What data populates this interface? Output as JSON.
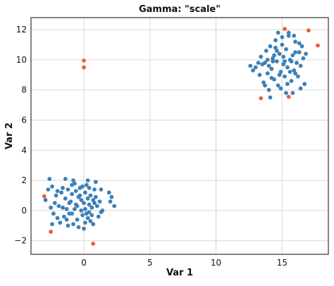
{
  "chart_data": {
    "type": "scatter",
    "title": "Gamma: \"scale\"",
    "xlabel": "Var 1",
    "ylabel": "Var 2",
    "xlim": [
      -4,
      18.5
    ],
    "ylim": [
      -2.9,
      12.8
    ],
    "x_ticks": [
      {
        "value": 0,
        "label": "0"
      },
      {
        "value": 5,
        "label": "5"
      },
      {
        "value": 10,
        "label": "10"
      },
      {
        "value": 15,
        "label": "15"
      }
    ],
    "y_ticks": [
      {
        "value": -2,
        "label": "−2"
      },
      {
        "value": 0,
        "label": "0"
      },
      {
        "value": 2,
        "label": "2"
      },
      {
        "value": 4,
        "label": "4"
      },
      {
        "value": 6,
        "label": "6"
      },
      {
        "value": 8,
        "label": "8"
      },
      {
        "value": 10,
        "label": "10"
      },
      {
        "value": 12,
        "label": "12"
      }
    ],
    "grid": true,
    "series": [
      {
        "color": "#3d80b8",
        "points": [
          [
            -2.6,
            2.1
          ],
          [
            -2.7,
            1.4
          ],
          [
            -2.4,
            1.6
          ],
          [
            -2.9,
            0.7
          ],
          [
            -2.2,
            0.5
          ],
          [
            -2.5,
            0.2
          ],
          [
            -2.1,
            1.0
          ],
          [
            -2.3,
            -0.2
          ],
          [
            -2.0,
            -0.5
          ],
          [
            -1.8,
            -0.8
          ],
          [
            -1.9,
            0.3
          ],
          [
            -1.7,
            1.2
          ],
          [
            -1.6,
            1.5
          ],
          [
            -1.4,
            0.8
          ],
          [
            -1.3,
            0.1
          ],
          [
            -1.5,
            -0.4
          ],
          [
            -1.2,
            -1.0
          ],
          [
            -1.1,
            -0.2
          ],
          [
            -1.0,
            0.6
          ],
          [
            -0.9,
            1.1
          ],
          [
            -0.8,
            2.0
          ],
          [
            -0.7,
            1.8
          ],
          [
            -0.6,
            0.4
          ],
          [
            -0.5,
            -0.6
          ],
          [
            -0.4,
            0.9
          ],
          [
            -0.3,
            1.5
          ],
          [
            -0.2,
            0.0
          ],
          [
            -0.1,
            -0.3
          ],
          [
            0.0,
            0.5
          ],
          [
            0.1,
            1.2
          ],
          [
            0.2,
            1.7
          ],
          [
            0.3,
            0.8
          ],
          [
            0.4,
            -0.1
          ],
          [
            0.5,
            -0.7
          ],
          [
            0.6,
            0.2
          ],
          [
            0.7,
            0.7
          ],
          [
            0.8,
            1.4
          ],
          [
            0.9,
            1.9
          ],
          [
            1.0,
            0.3
          ],
          [
            1.1,
            -0.4
          ],
          [
            1.2,
            0.6
          ],
          [
            1.4,
            0.0
          ],
          [
            -1.2,
            1.4
          ],
          [
            -0.9,
            -0.2
          ],
          [
            -0.5,
            0.3
          ],
          [
            -0.2,
            0.7
          ],
          [
            0.2,
            -0.2
          ],
          [
            0.4,
            0.4
          ],
          [
            0.7,
            -0.9
          ],
          [
            -0.8,
            -0.9
          ],
          [
            -1.6,
            0.2
          ],
          [
            -0.3,
            1.0
          ],
          [
            0.5,
            1.0
          ],
          [
            0.0,
            -1.2
          ],
          [
            -1.3,
            -0.6
          ],
          [
            -0.6,
            1.3
          ],
          [
            0.3,
            -0.5
          ],
          [
            0.6,
            -0.3
          ],
          [
            0.9,
            0.9
          ],
          [
            -0.4,
            -1.1
          ],
          [
            -2.0,
            1.3
          ],
          [
            -1.1,
            0.5
          ],
          [
            -0.7,
            0.1
          ],
          [
            0.1,
            0.1
          ],
          [
            0.8,
            0.5
          ],
          [
            1.3,
            -0.1
          ],
          [
            1.9,
            1.2
          ],
          [
            2.1,
            0.9
          ],
          [
            2.3,
            0.3
          ],
          [
            2.0,
            0.6
          ],
          [
            0.3,
            2.0
          ],
          [
            -0.1,
            1.6
          ],
          [
            -1.4,
            2.1
          ],
          [
            -0.9,
            1.7
          ],
          [
            0.4,
            1.5
          ],
          [
            -2.4,
            -0.9
          ],
          [
            1.3,
            1.4
          ],
          [
            0.1,
            -0.8
          ],
          [
            12.6,
            9.6
          ],
          [
            12.8,
            9.3
          ],
          [
            13.0,
            9.5
          ],
          [
            13.3,
            9.0
          ],
          [
            13.4,
            10.2
          ],
          [
            13.6,
            8.5
          ],
          [
            13.7,
            9.8
          ],
          [
            13.8,
            10.6
          ],
          [
            13.9,
            9.1
          ],
          [
            14.0,
            8.0
          ],
          [
            14.1,
            10.9
          ],
          [
            14.2,
            9.4
          ],
          [
            14.3,
            10.1
          ],
          [
            14.4,
            8.7
          ],
          [
            14.5,
            11.3
          ],
          [
            14.6,
            9.9
          ],
          [
            14.7,
            8.3
          ],
          [
            14.8,
            10.4
          ],
          [
            14.9,
            9.2
          ],
          [
            15.0,
            11.0
          ],
          [
            15.1,
            9.7
          ],
          [
            15.2,
            8.9
          ],
          [
            15.3,
            10.7
          ],
          [
            15.4,
            9.5
          ],
          [
            15.5,
            11.6
          ],
          [
            15.6,
            10.0
          ],
          [
            15.7,
            8.6
          ],
          [
            15.8,
            10.3
          ],
          [
            15.9,
            9.3
          ],
          [
            16.0,
            11.2
          ],
          [
            16.1,
            9.8
          ],
          [
            16.2,
            8.9
          ],
          [
            16.3,
            10.5
          ],
          [
            16.4,
            9.6
          ],
          [
            16.5,
            10.9
          ],
          [
            16.6,
            10.1
          ],
          [
            16.7,
            8.4
          ],
          [
            16.8,
            10.4
          ],
          [
            13.5,
            9.7
          ],
          [
            13.9,
            10.0
          ],
          [
            14.2,
            8.8
          ],
          [
            14.6,
            10.6
          ],
          [
            14.9,
            8.1
          ],
          [
            15.1,
            10.2
          ],
          [
            15.4,
            8.4
          ],
          [
            15.7,
            9.9
          ],
          [
            16.0,
            9.1
          ],
          [
            16.3,
            11.1
          ],
          [
            14.0,
            9.6
          ],
          [
            14.4,
            10.3
          ],
          [
            14.8,
            9.0
          ],
          [
            15.2,
            9.9
          ],
          [
            15.6,
            9.2
          ],
          [
            16.0,
            10.5
          ],
          [
            14.7,
            11.8
          ],
          [
            15.0,
            11.5
          ],
          [
            15.5,
            11.8
          ],
          [
            14.1,
            7.5
          ],
          [
            15.8,
            7.8
          ],
          [
            13.7,
            8.3
          ],
          [
            16.4,
            8.1
          ],
          [
            15.3,
            7.8
          ],
          [
            14.5,
            10.8
          ],
          [
            13.2,
            9.8
          ],
          [
            14.3,
            9.9
          ],
          [
            15.9,
            11.6
          ]
        ]
      },
      {
        "color": "#f05c3b",
        "points": [
          [
            0.0,
            9.95
          ],
          [
            0.0,
            9.5
          ],
          [
            -3.0,
            0.95
          ],
          [
            -2.5,
            -1.4
          ],
          [
            0.7,
            -2.2
          ],
          [
            15.2,
            12.05
          ],
          [
            17.0,
            11.95
          ],
          [
            17.7,
            10.95
          ],
          [
            13.4,
            7.45
          ],
          [
            15.5,
            7.55
          ]
        ]
      }
    ]
  }
}
